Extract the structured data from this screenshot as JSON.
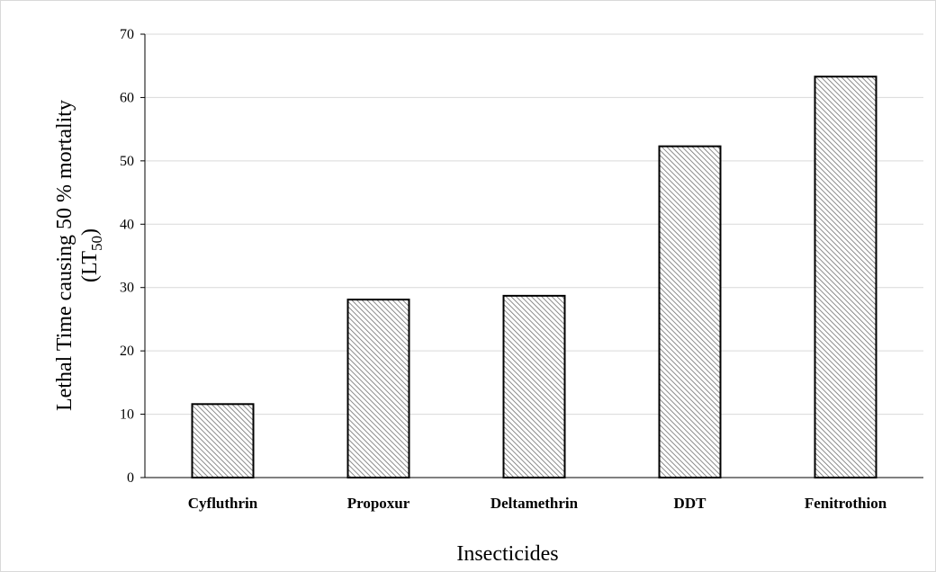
{
  "chart_data": {
    "type": "bar",
    "categories": [
      "Cyfluthrin",
      "Propoxur",
      "Deltamethrin",
      "DDT",
      "Fenitrothion"
    ],
    "values": [
      11.6,
      28.1,
      28.7,
      52.3,
      63.3
    ],
    "xlabel": "Insecticides",
    "ylabel_line1": "Lethal Time causing 50 % mortality",
    "ylabel_line2_prefix": "(LT",
    "ylabel_line2_sub": "50",
    "ylabel_line2_suffix": ")",
    "ylim": [
      0,
      70
    ],
    "yticks": [
      "0",
      "10",
      "20",
      "30",
      "40",
      "50",
      "60",
      "70"
    ],
    "grid": true,
    "bar_fill": "hatched-gray",
    "colors": {
      "bar_border": "#000000",
      "hatch": "#6f6f6f",
      "grid": "#d9d9d9"
    }
  }
}
